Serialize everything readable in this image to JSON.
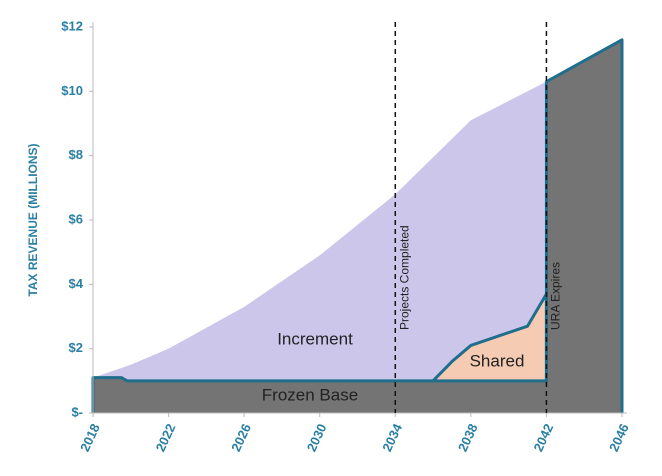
{
  "chart_data": {
    "type": "area",
    "y_label": "TAX REVENUE (MILLIONS)",
    "xlim": [
      2018,
      2046
    ],
    "xticks": [
      2018,
      2022,
      2026,
      2030,
      2034,
      2038,
      2042,
      2046
    ],
    "ylim": [
      0,
      12
    ],
    "yticks": [
      {
        "value": 0,
        "label": "$-"
      },
      {
        "value": 2,
        "label": "$2"
      },
      {
        "value": 4,
        "label": "$4"
      },
      {
        "value": 6,
        "label": "$6"
      },
      {
        "value": 8,
        "label": "$8"
      },
      {
        "value": 10,
        "label": "$10"
      },
      {
        "value": 12,
        "label": "$12"
      }
    ],
    "series": [
      {
        "name": "Increment",
        "color": "#cdc6eb",
        "x": [
          2018,
          2020,
          2022,
          2026,
          2030,
          2034,
          2038,
          2042,
          2046
        ],
        "values": [
          1.1,
          1.5,
          2.0,
          3.3,
          4.9,
          6.8,
          9.1,
          10.3,
          11.6
        ]
      },
      {
        "name": "Shared",
        "color": "#f5cbb4",
        "x": [
          2036,
          2037,
          2038,
          2041,
          2042
        ],
        "values": [
          1.0,
          1.6,
          2.1,
          2.7,
          3.7
        ]
      },
      {
        "name": "Frozen Base",
        "color": "#747474",
        "x": [
          2018,
          2019.5,
          2019.8,
          2036,
          2042,
          2042,
          2046
        ],
        "values": [
          1.1,
          1.1,
          1.0,
          1.0,
          1.0,
          10.3,
          11.6
        ]
      }
    ],
    "outline_color": "#1f6e8c",
    "annotations": [
      {
        "x": 2034,
        "label": "Projects Completed"
      },
      {
        "x": 2042,
        "label": "URA Expires"
      }
    ]
  }
}
